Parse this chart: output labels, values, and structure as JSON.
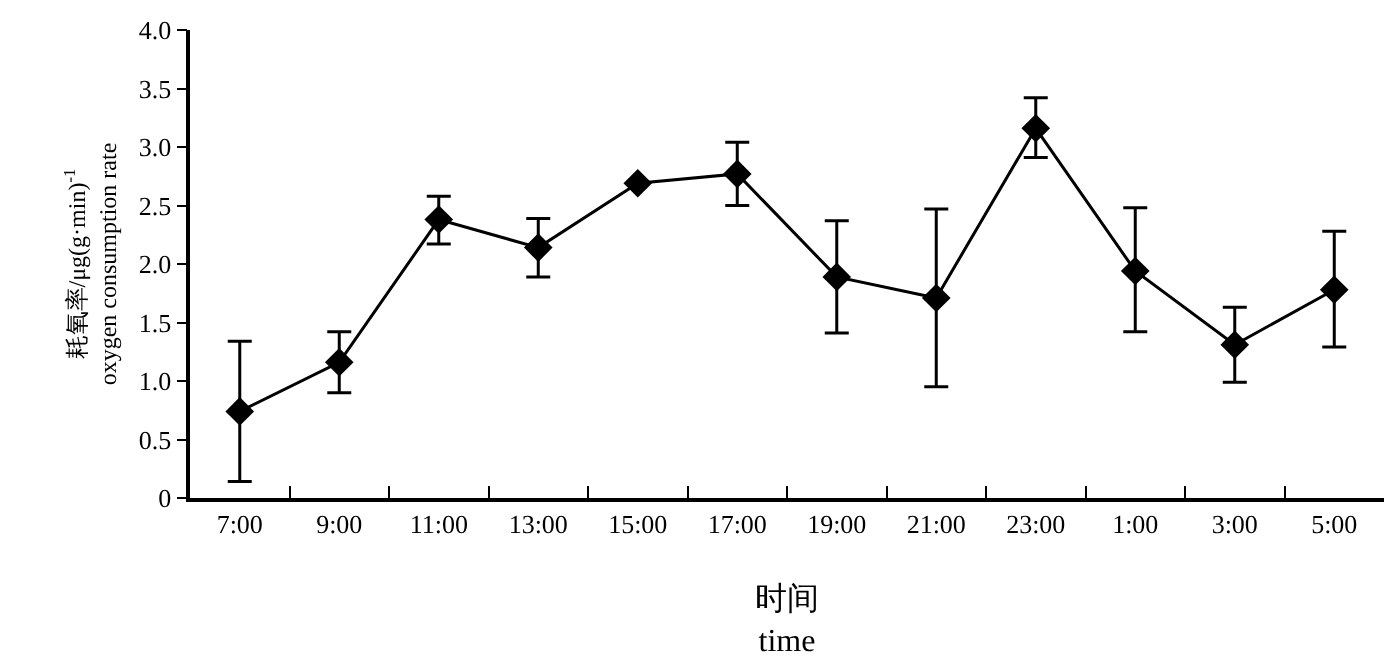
{
  "chart_data": {
    "type": "line",
    "xlabel": "时间\ntime",
    "ylabel": "耗氧率/μg(g·min)$^{-1}$\noxygen consumption rate",
    "categories": [
      "7:00",
      "9:00",
      "11:00",
      "13:00",
      "15:00",
      "17:00",
      "19:00",
      "21:00",
      "23:00",
      "1:00",
      "3:00",
      "5:00"
    ],
    "series": [
      {
        "color": "#000000",
        "values": [
          0.74,
          1.16,
          2.38,
          2.14,
          2.69,
          2.77,
          1.89,
          1.71,
          3.16,
          1.94,
          1.31,
          1.78
        ],
        "errors": [
          [
            0.14,
            1.34
          ],
          [
            0.9,
            1.42
          ],
          [
            2.17,
            2.58
          ],
          [
            1.89,
            2.39
          ],
          null,
          [
            2.5,
            3.04
          ],
          [
            1.41,
            2.37
          ],
          [
            0.95,
            2.47
          ],
          [
            2.91,
            3.42
          ],
          [
            1.42,
            2.48
          ],
          [
            0.99,
            1.63
          ],
          [
            1.29,
            2.28
          ]
        ]
      }
    ],
    "ylim": [
      0,
      4
    ],
    "yticks": [
      {
        "value": 0,
        "label": "0"
      },
      {
        "value": 0.5,
        "label": "0.5"
      },
      {
        "value": 1,
        "label": "1.0"
      },
      {
        "value": 1.5,
        "label": "1.5"
      },
      {
        "value": 2,
        "label": "2.0"
      },
      {
        "value": 2.5,
        "label": "2.5"
      },
      {
        "value": 3,
        "label": "3.0"
      },
      {
        "value": 3.5,
        "label": "3.5"
      },
      {
        "value": 4,
        "label": "4.0"
      }
    ],
    "marker": "diamond",
    "line_style": "solid"
  }
}
